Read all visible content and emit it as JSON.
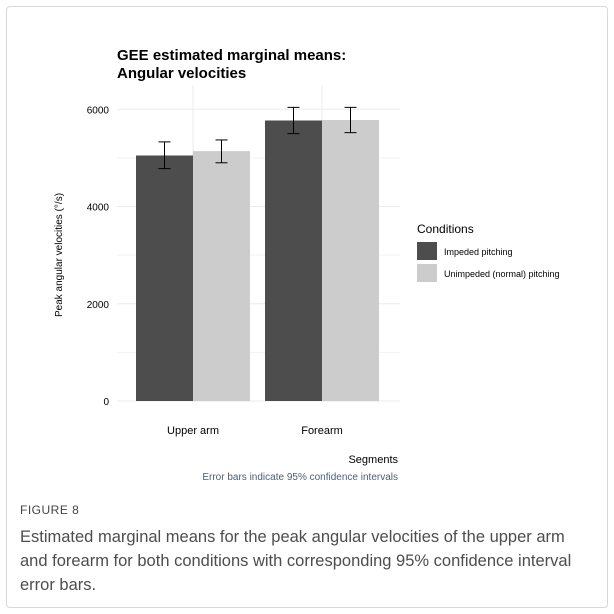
{
  "figure": {
    "label": "FIGURE 8",
    "caption": "Estimated marginal means for the peak angular velocities of the upper arm and forearm for both conditions with corresponding 95% confidence interval error bars."
  },
  "chart_data": {
    "type": "bar",
    "title_lines": [
      "GEE estimated marginal means:",
      "Angular velocities"
    ],
    "xlabel": "Segments",
    "ylabel": "Peak angular velocities (°/s)",
    "note": "Error bars indicate 95% confidence intervals",
    "categories": [
      "Upper arm",
      "Forearm"
    ],
    "ylim": [
      0,
      6500
    ],
    "yticks": [
      0,
      2000,
      4000,
      6000
    ],
    "grid": true,
    "legend": {
      "title": "Conditions",
      "position": "right"
    },
    "series": [
      {
        "name": "Impeded pitching",
        "color": "#4d4d4d",
        "values": [
          5050,
          5770
        ],
        "ci_low": [
          4780,
          5500
        ],
        "ci_high": [
          5330,
          6040
        ]
      },
      {
        "name": "Unimpeded (normal) pitching",
        "color": "#cccccc",
        "values": [
          5140,
          5780
        ],
        "ci_low": [
          4900,
          5520
        ],
        "ci_high": [
          5370,
          6040
        ]
      }
    ]
  }
}
